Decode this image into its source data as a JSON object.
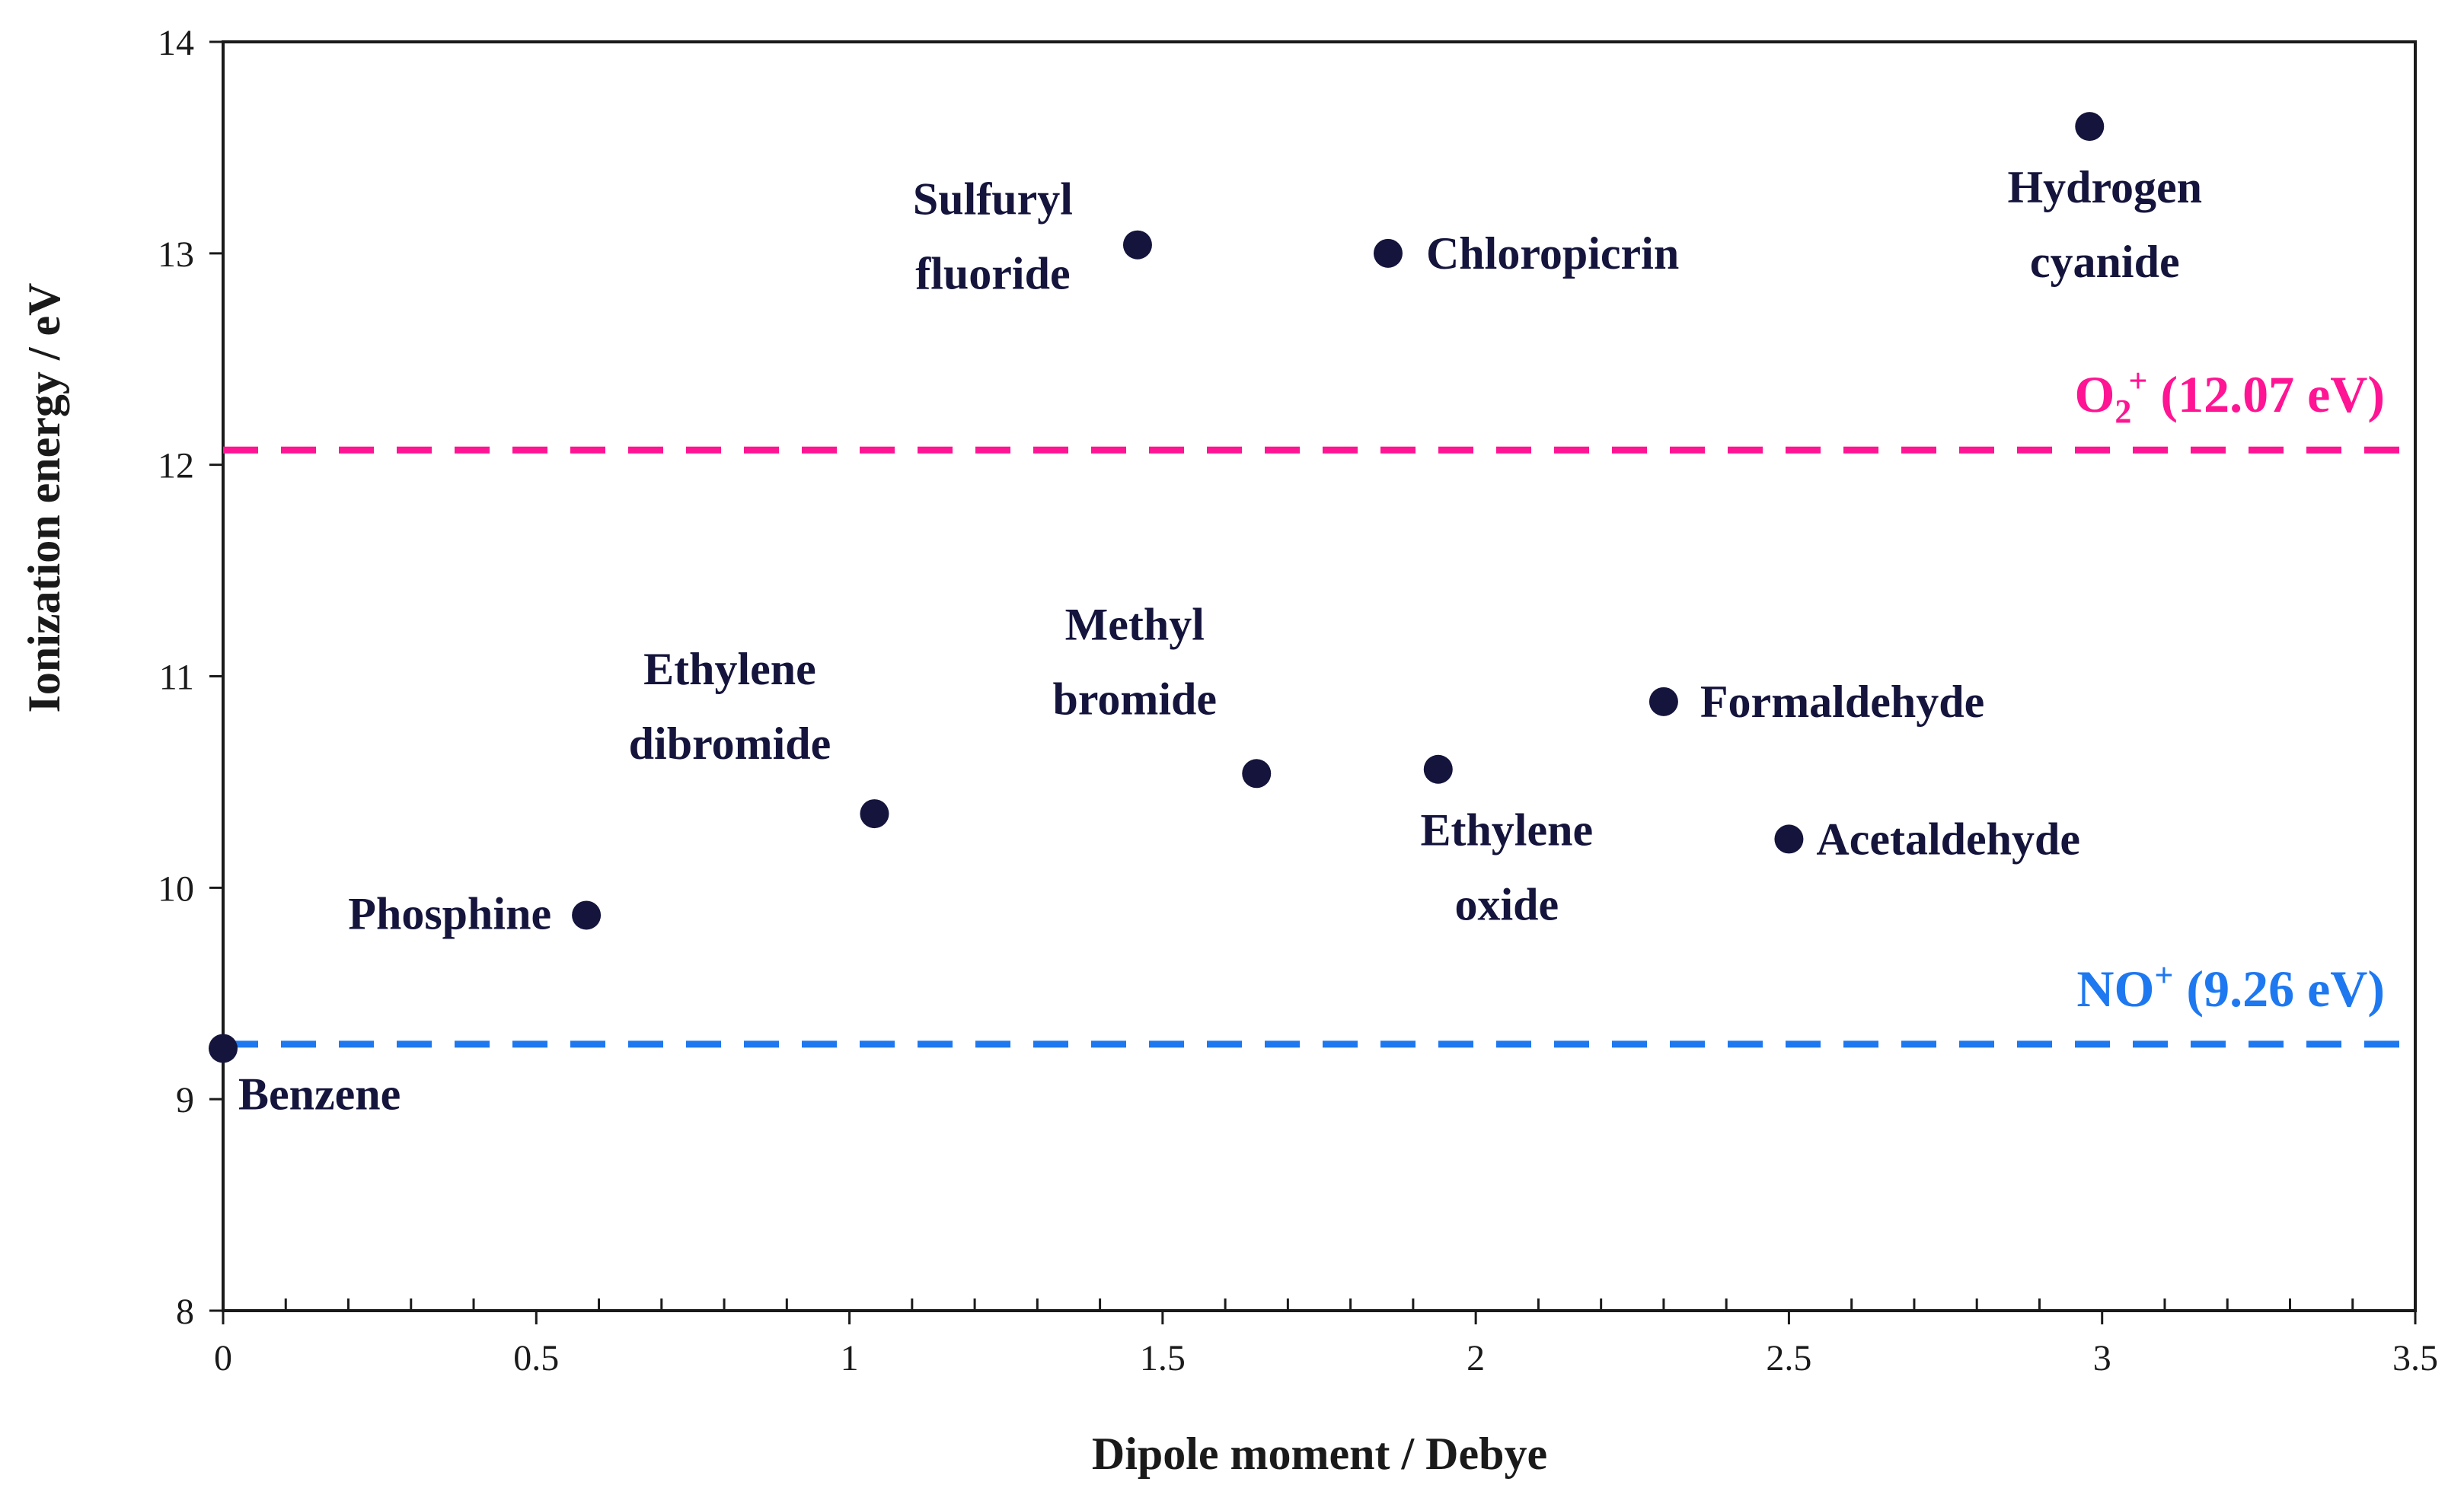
{
  "chart_data": {
    "type": "scatter",
    "title": "",
    "xlabel": "Dipole moment / Debye",
    "ylabel": "Ionization energy / eV",
    "xlim": [
      0,
      3.5
    ],
    "ylim": [
      8,
      14
    ],
    "x_ticks": [
      {
        "value": 0,
        "label": "0"
      },
      {
        "value": 0.5,
        "label": "0.5"
      },
      {
        "value": 1,
        "label": "1"
      },
      {
        "value": 1.5,
        "label": "1.5"
      },
      {
        "value": 2,
        "label": "2"
      },
      {
        "value": 2.5,
        "label": "2.5"
      },
      {
        "value": 3,
        "label": "3"
      },
      {
        "value": 3.5,
        "label": "3.5"
      }
    ],
    "x_minor_step": 0.1,
    "y_ticks": [
      {
        "value": 8,
        "label": "8"
      },
      {
        "value": 9,
        "label": "9"
      },
      {
        "value": 10,
        "label": "10"
      },
      {
        "value": 11,
        "label": "11"
      },
      {
        "value": 12,
        "label": "12"
      },
      {
        "value": 13,
        "label": "13"
      },
      {
        "value": 14,
        "label": "14"
      }
    ],
    "grid": false,
    "point_color": "#14143c",
    "points": [
      {
        "name": "Benzene",
        "x": 0,
        "y": 9.24,
        "label_lines": [
          "Benzene"
        ],
        "label_pos": "below-right",
        "label_align": "start"
      },
      {
        "name": "Phosphine",
        "x": 0.58,
        "y": 9.87,
        "label_lines": [
          "Phosphine"
        ],
        "label_pos": "left",
        "label_align": "end"
      },
      {
        "name": "Ethylene dibromide",
        "x": 1.04,
        "y": 10.35,
        "label_lines": [
          "Ethylene",
          "dibromide"
        ],
        "label_pos": "above-left",
        "label_align": "middle"
      },
      {
        "name": "Sulfuryl fluoride",
        "x": 1.46,
        "y": 13.04,
        "label_lines": [
          "Sulfuryl",
          "fluoride"
        ],
        "label_pos": "left",
        "label_align": "middle"
      },
      {
        "name": "Methyl bromide",
        "x": 1.65,
        "y": 10.54,
        "label_lines": [
          "Methyl",
          "bromide"
        ],
        "label_pos": "above-left",
        "label_align": "middle"
      },
      {
        "name": "Chloropicrin",
        "x": 1.86,
        "y": 13.0,
        "label_lines": [
          "Chloropicrin"
        ],
        "label_pos": "right",
        "label_align": "start"
      },
      {
        "name": "Ethylene oxide",
        "x": 1.94,
        "y": 10.56,
        "label_lines": [
          "Ethylene",
          "oxide"
        ],
        "label_pos": "below",
        "label_align": "middle"
      },
      {
        "name": "Formaldehyde",
        "x": 2.3,
        "y": 10.88,
        "label_lines": [
          "Formaldehyde"
        ],
        "label_pos": "right",
        "label_align": "start"
      },
      {
        "name": "Acetaldehyde",
        "x": 2.5,
        "y": 10.23,
        "label_lines": [
          "Acetaldehyde"
        ],
        "label_pos": "right",
        "label_align": "start"
      },
      {
        "name": "Hydrogen cyanide",
        "x": 2.98,
        "y": 13.6,
        "label_lines": [
          "Hydrogen",
          "cyanide"
        ],
        "label_pos": "below",
        "label_align": "middle"
      }
    ],
    "reference_lines": [
      {
        "name": "O2+",
        "y": 12.07,
        "color": "#ff1493",
        "label_main": "O",
        "label_sub": "2",
        "label_sup": "+",
        "label_rest": " (12.07 eV)"
      },
      {
        "name": "NO+",
        "y": 9.26,
        "color": "#1e78f0",
        "label_main": "NO",
        "label_sub": "",
        "label_sup": "+",
        "label_rest": " (9.26 eV)"
      }
    ]
  }
}
